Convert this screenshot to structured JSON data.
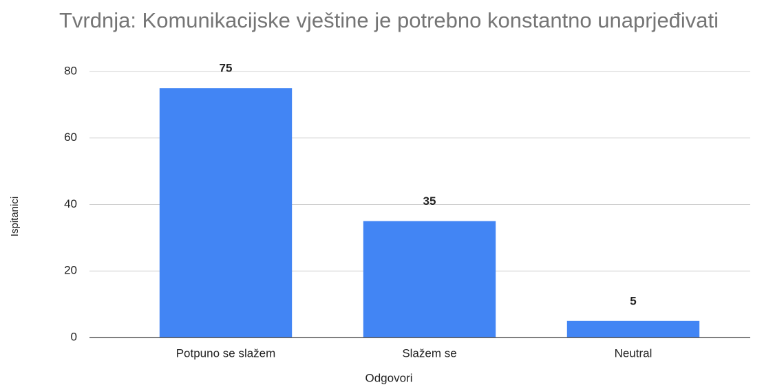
{
  "chart_data": {
    "type": "bar",
    "title": "Tvrdnja: Komunikacijske vještine je potrebno konstantno unaprjeđivati",
    "x_label": "Odgovori",
    "y_label": "Ispitanici",
    "categories": [
      "Potpuno se slažem",
      "Slažem se",
      "Neutral"
    ],
    "values": [
      75,
      35,
      5
    ],
    "color": "#4285f4",
    "ylim": [
      0,
      80
    ],
    "yticks": [
      0,
      20,
      40,
      60,
      80
    ],
    "grid": true
  }
}
